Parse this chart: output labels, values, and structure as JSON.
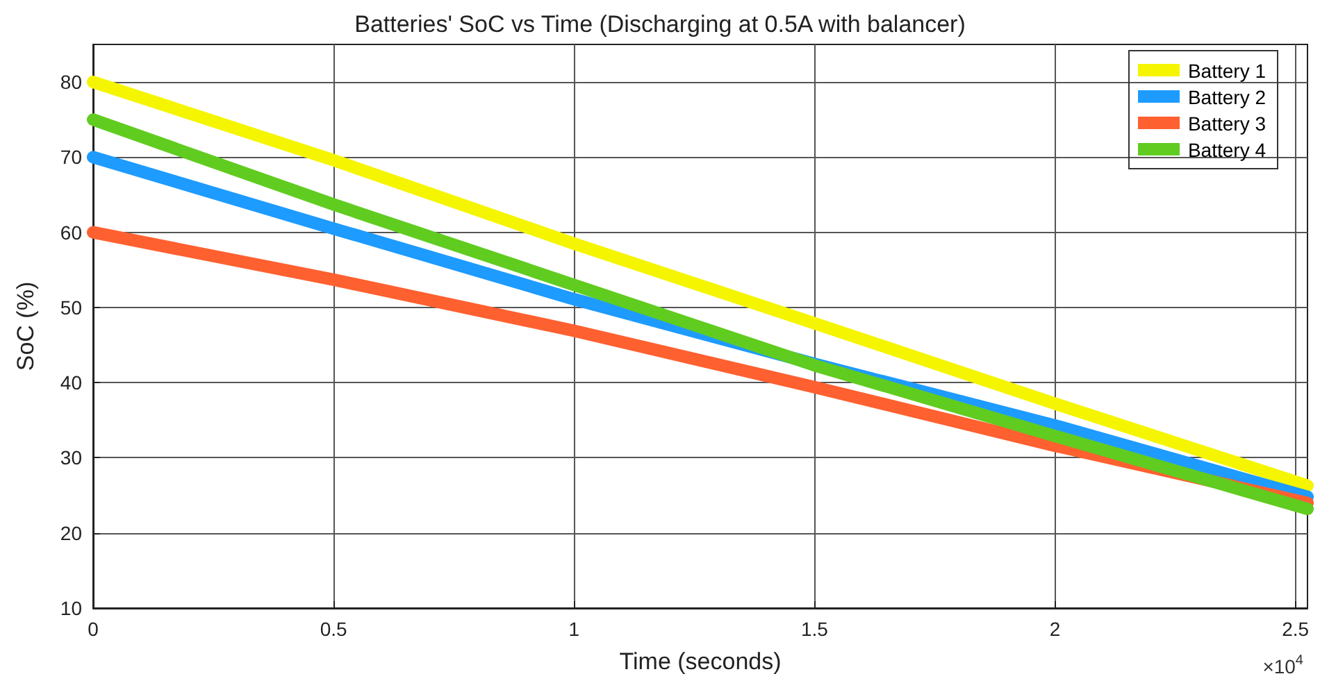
{
  "chart_data": {
    "type": "line",
    "title": "Batteries' SoC vs Time (Discharging at 0.5A with balancer)",
    "xlabel": "Time (seconds)",
    "ylabel": "SoC (%)",
    "x": [
      0,
      0.5,
      1,
      1.5,
      2,
      2.525
    ],
    "series": [
      {
        "name": "Battery 1",
        "color": "#f5f500",
        "values": [
          80,
          69.6,
          58.5,
          47.9,
          37.2,
          26.3
        ]
      },
      {
        "name": "Battery 2",
        "color": "#1e9bff",
        "values": [
          70,
          60.5,
          51.1,
          42.5,
          34.3,
          24.8
        ]
      },
      {
        "name": "Battery 3",
        "color": "#ff6030",
        "values": [
          60,
          53.7,
          46.9,
          39.4,
          31.6,
          24.0
        ]
      },
      {
        "name": "Battery 4",
        "color": "#60cc20",
        "values": [
          75,
          63.7,
          53.0,
          42.3,
          32.9,
          23.2
        ]
      }
    ],
    "xlim": [
      0,
      2.525
    ],
    "xticks": [
      0,
      0.5,
      1,
      1.5,
      2,
      2.5
    ],
    "ylim": [
      10,
      85
    ],
    "yticks": [
      10,
      20,
      30,
      40,
      50,
      60,
      70,
      80
    ],
    "annotations": [
      "×10$^{4}$"
    ],
    "grid": true,
    "legend": "top right",
    "marker": "none",
    "line_style": "solid"
  }
}
